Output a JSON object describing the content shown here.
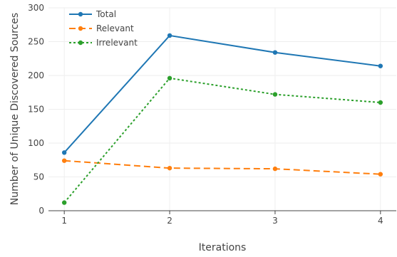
{
  "chart_data": {
    "type": "line",
    "title": "",
    "xlabel": "Iterations",
    "ylabel": "Number of Unique Discovered Sources",
    "x": [
      1,
      2,
      3,
      4
    ],
    "x_ticks": [
      "1",
      "2",
      "3",
      "4"
    ],
    "y_ticks": [
      "0",
      "50",
      "100",
      "150",
      "200",
      "250",
      "300"
    ],
    "xlim": [
      0.85,
      4.15
    ],
    "ylim": [
      0,
      300
    ],
    "grid": true,
    "legend_position": "top-left",
    "series": [
      {
        "name": "Total",
        "values": [
          86,
          259,
          234,
          214
        ],
        "color": "#1f77b4",
        "dash": "solid"
      },
      {
        "name": "Relevant",
        "values": [
          74,
          63,
          62,
          54
        ],
        "color": "#ff7f0e",
        "dash": "dash"
      },
      {
        "name": "Irrelevant",
        "values": [
          12,
          196,
          172,
          160
        ],
        "color": "#2ca02c",
        "dash": "dot"
      }
    ]
  }
}
